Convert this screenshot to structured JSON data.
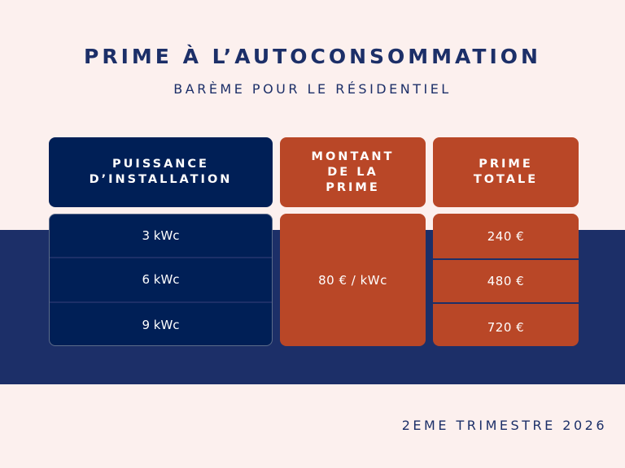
{
  "title": "PRIME À L’AUTOCONSOMMATION",
  "subtitle": "BARÈME POUR LE RÉSIDENTIEL",
  "table": {
    "headers": [
      "PUISSANCE D’INSTALLATION",
      "MONTANT DE LA PRIME",
      "PRIME TOTALE"
    ],
    "power": [
      "3 kWc",
      "6 kWc",
      "9 kWc"
    ],
    "rate": "80 € / kWc",
    "totals": [
      "240 €",
      "480 €",
      "720 €"
    ]
  },
  "footer": "2EME TRIMESTRE 2026",
  "colors": {
    "navy": "#001f56",
    "band": "#1c2f68",
    "orange": "#b94727",
    "background": "#fcf0ee"
  }
}
